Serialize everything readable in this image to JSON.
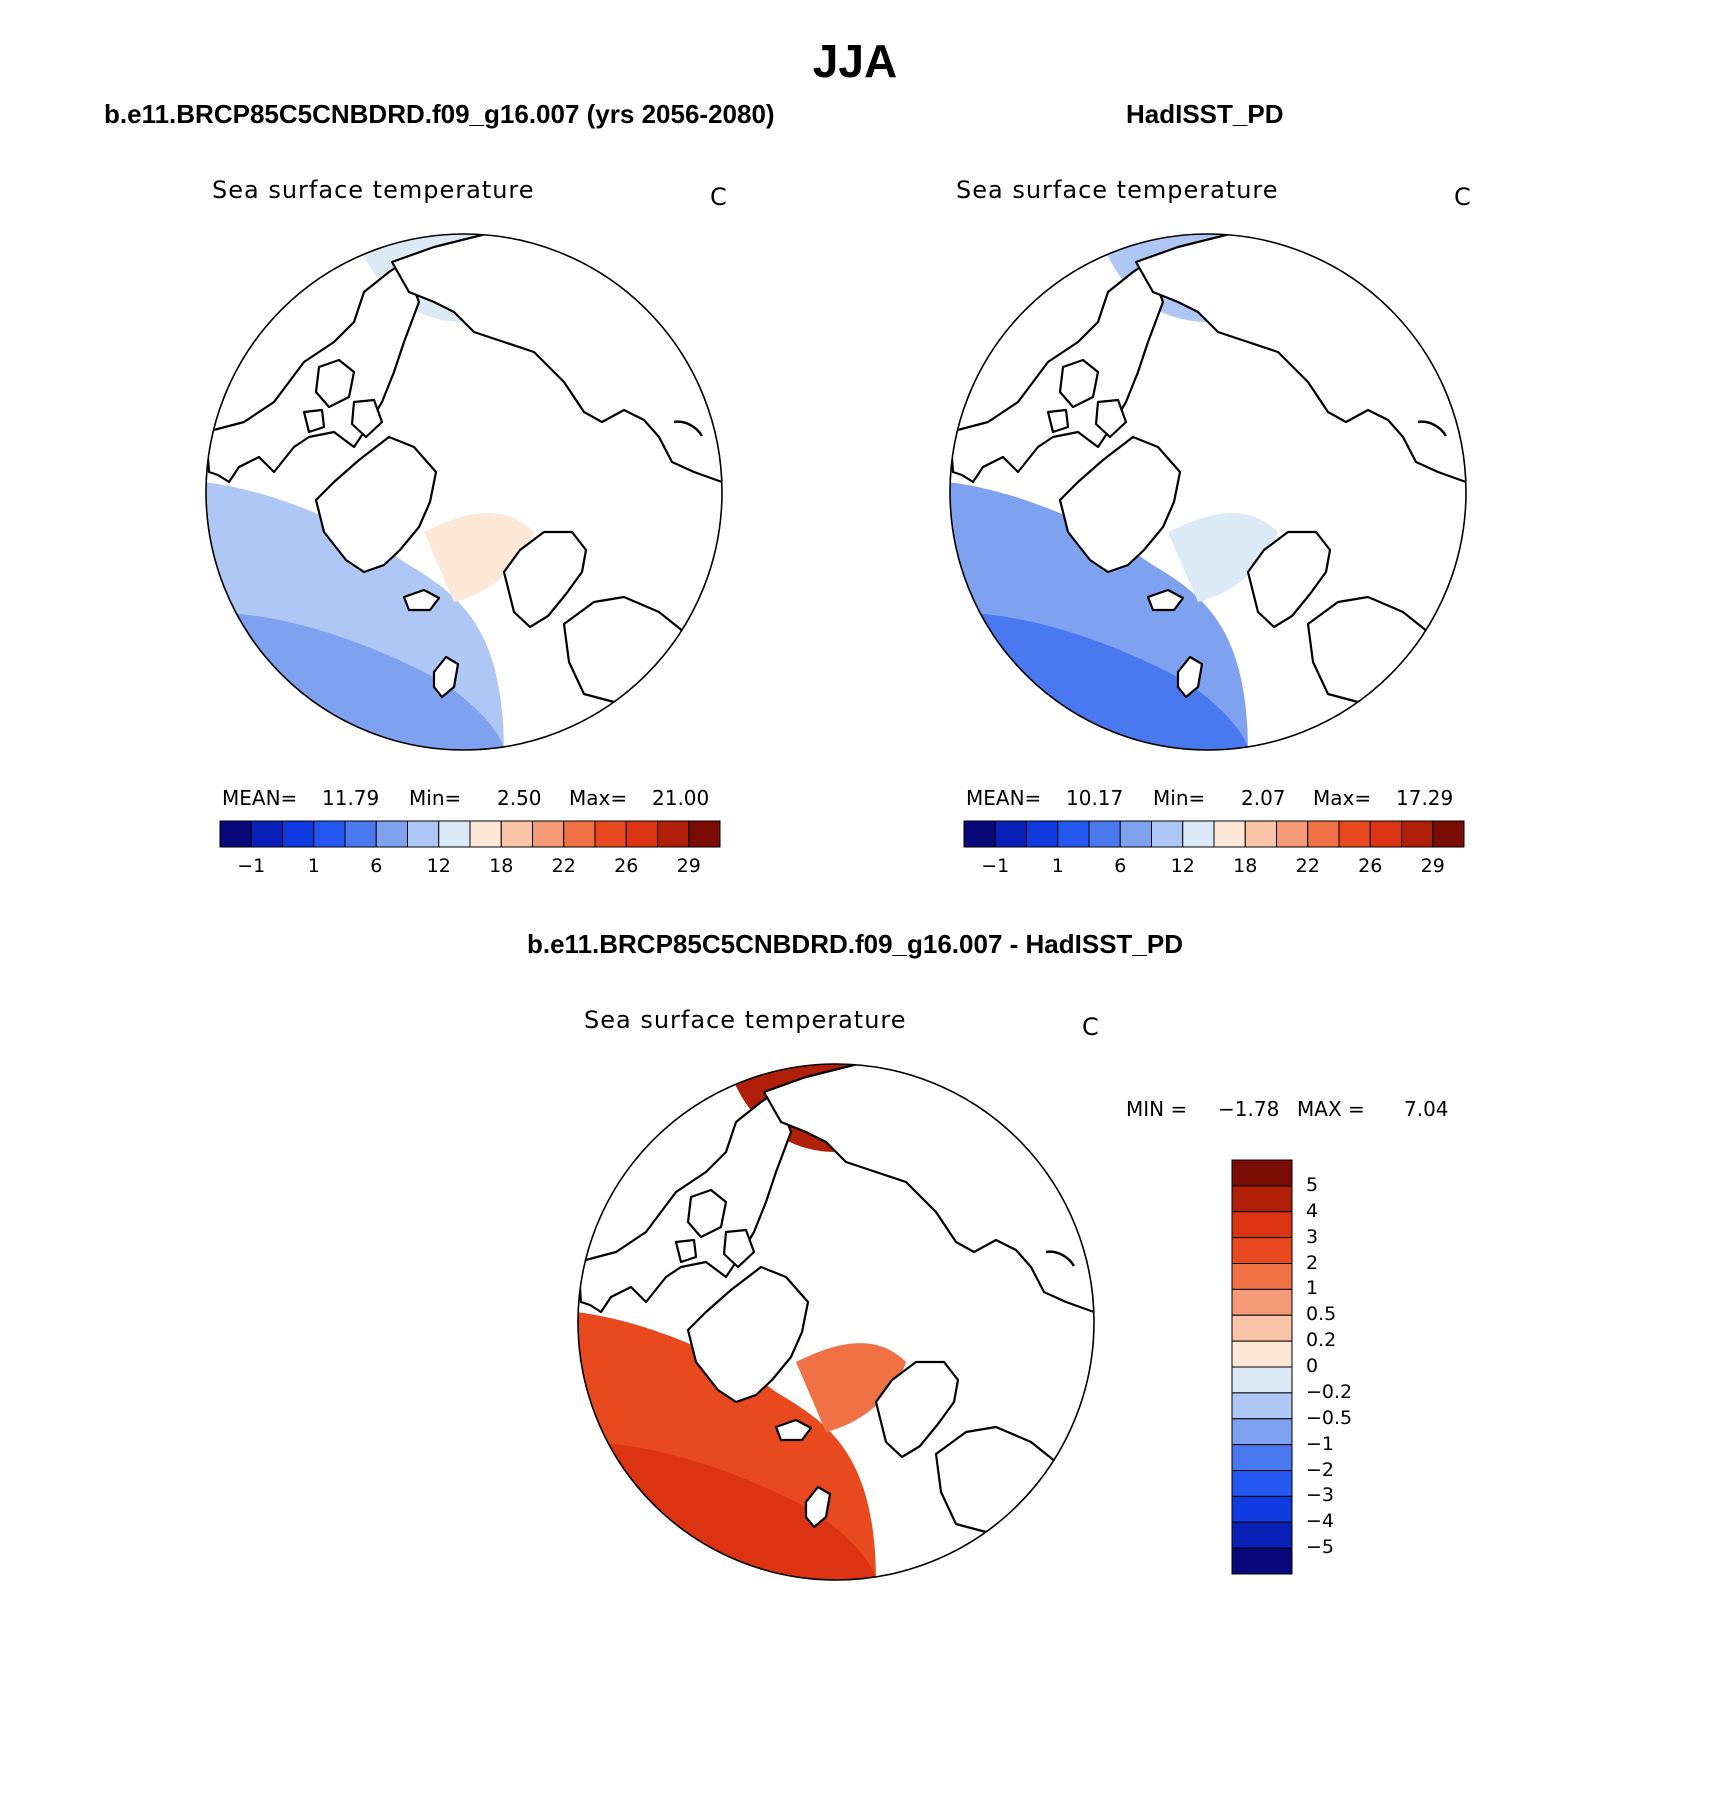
{
  "title": "JJA",
  "colors": {
    "ssta_scale": [
      "#08087a",
      "#0a1fb5",
      "#0f3be0",
      "#2457ef",
      "#4a78ee",
      "#7ea1f0",
      "#aec7f5",
      "#dceaf8",
      "#fde7d6",
      "#f9c4a8",
      "#f49a76",
      "#ef7145",
      "#e9491f",
      "#dc3412",
      "#b02009",
      "#7a0b05"
    ],
    "diff_scale": [
      "#08087a",
      "#0a1fb5",
      "#0f3be0",
      "#2457ef",
      "#4a78ee",
      "#7ea1f0",
      "#aec7f5",
      "#dceaf8",
      "#fde7d6",
      "#f9c4a8",
      "#f49a76",
      "#ef7145",
      "#e9491f",
      "#dc3412",
      "#b02009",
      "#7a0b05"
    ],
    "land": "#ffffff",
    "coast": "#000000"
  },
  "chart_data": [
    {
      "type": "heatmap",
      "panel_title": "b.e11.BRCP85C5CNBDRD.f09_g16.007 (yrs 2056-2080)",
      "variable": "Sea surface temperature",
      "units": "C",
      "projection": "north polar stereographic",
      "stats": {
        "mean_label": "MEAN=",
        "mean": "11.79",
        "min_label": "Min=",
        "min": "2.50",
        "max_label": "Max=",
        "max": "21.00"
      },
      "colorbar": {
        "tick_labels": [
          "−1",
          "1",
          "6",
          "12",
          "18",
          "22",
          "26",
          "29"
        ]
      },
      "dominant_colors": [
        6,
        5,
        7,
        8
      ]
    },
    {
      "type": "heatmap",
      "panel_title": "HadISST_PD",
      "variable": "Sea surface temperature",
      "units": "C",
      "projection": "north polar stereographic",
      "stats": {
        "mean_label": "MEAN=",
        "mean": "10.17",
        "min_label": "Min=",
        "min": "2.07",
        "max_label": "Max=",
        "max": "17.29"
      },
      "colorbar": {
        "tick_labels": [
          "−1",
          "1",
          "6",
          "12",
          "18",
          "22",
          "26",
          "29"
        ]
      },
      "dominant_colors": [
        5,
        4,
        6,
        7
      ]
    },
    {
      "type": "heatmap",
      "panel_title": "b.e11.BRCP85C5CNBDRD.f09_g16.007 - HadISST_PD",
      "variable": "Sea surface temperature",
      "units": "C",
      "projection": "north polar stereographic",
      "stats": {
        "min_label": "MIN =",
        "min": "−1.78",
        "max_label": "MAX =",
        "max": "7.04"
      },
      "colorbar": {
        "tick_labels": [
          "5",
          "4",
          "3",
          "2",
          "1",
          "0.5",
          "0.2",
          "0",
          "−0.2",
          "−0.5",
          "−1",
          "−2",
          "−3",
          "−4",
          "−5"
        ]
      },
      "dominant_colors": [
        12,
        13,
        14,
        11
      ]
    }
  ]
}
